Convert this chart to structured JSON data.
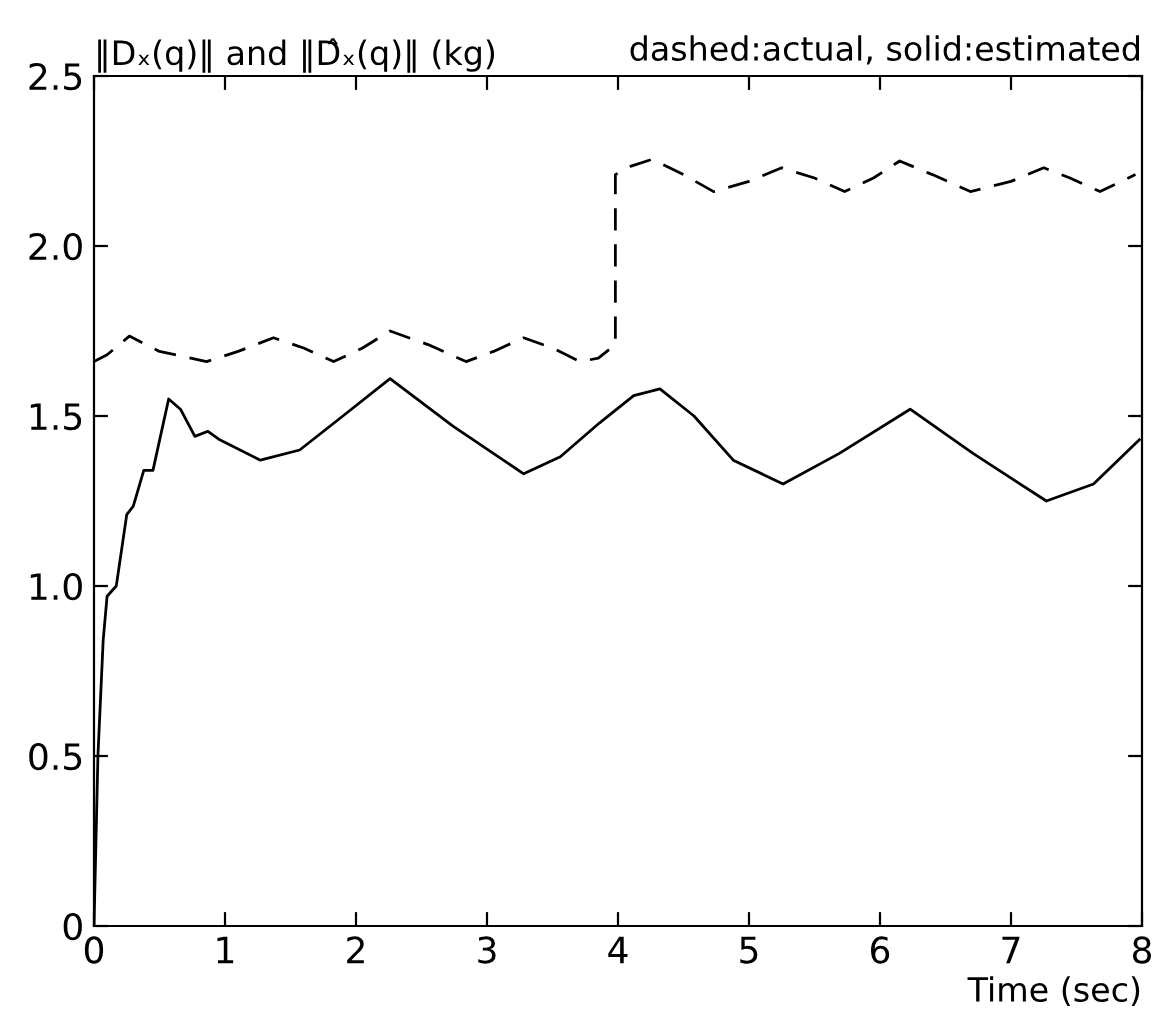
{
  "chart_data": {
    "type": "line",
    "title": "‖Dₓ(q)‖ and ‖D̂ₓ(q)‖ (kg)",
    "annotations": [
      "dashed:actual, solid:estimated"
    ],
    "xlabel": "Time (sec)",
    "xlim": [
      0,
      8
    ],
    "ylim": [
      0,
      2.5
    ],
    "xticks": [
      0,
      1,
      2,
      3,
      4,
      5,
      6,
      7,
      8
    ],
    "yticks": [
      0,
      0.5,
      {
        "value": 1,
        "label": "1.0"
      },
      1.5,
      {
        "value": 2,
        "label": "2.0"
      },
      2.5
    ],
    "grid": false,
    "legend": false,
    "series": [
      {
        "color": "#000000",
        "line_style": "dashed",
        "x": [
          0,
          0.1,
          0.27,
          0.5,
          0.86,
          1.1,
          1.37,
          1.6,
          1.83,
          2.05,
          2.26,
          2.55,
          2.84,
          3.05,
          3.28,
          3.5,
          3.71,
          3.85,
          3.98,
          3.98,
          4.1,
          4.26,
          4.5,
          4.73,
          5.0,
          5.25,
          5.5,
          5.73,
          5.95,
          6.15,
          6.4,
          6.69,
          7.0,
          7.25,
          7.45,
          7.68,
          7.95
        ],
        "values": [
          1.66,
          1.68,
          1.735,
          1.69,
          1.66,
          1.69,
          1.73,
          1.7,
          1.66,
          1.7,
          1.75,
          1.71,
          1.66,
          1.69,
          1.73,
          1.7,
          1.66,
          1.67,
          1.71,
          2.21,
          2.235,
          2.255,
          2.21,
          2.16,
          2.19,
          2.23,
          2.2,
          2.16,
          2.2,
          2.25,
          2.21,
          2.16,
          2.19,
          2.23,
          2.2,
          2.16,
          2.21
        ]
      },
      {
        "color": "#000000",
        "line_style": "solid",
        "x": [
          0,
          0.03,
          0.07,
          0.1,
          0.17,
          0.25,
          0.3,
          0.38,
          0.45,
          0.57,
          0.66,
          0.77,
          0.87,
          0.96,
          1.27,
          1.57,
          1.9,
          2.26,
          2.74,
          3.28,
          3.56,
          3.86,
          4.12,
          4.32,
          4.58,
          4.88,
          5.26,
          5.69,
          6.23,
          6.71,
          7.27,
          7.63,
          7.98
        ],
        "values": [
          0,
          0.5,
          0.84,
          0.97,
          1.0,
          1.21,
          1.235,
          1.34,
          1.34,
          1.55,
          1.52,
          1.44,
          1.455,
          1.43,
          1.37,
          1.4,
          1.5,
          1.61,
          1.47,
          1.33,
          1.38,
          1.48,
          1.56,
          1.58,
          1.5,
          1.37,
          1.3,
          1.39,
          1.52,
          1.39,
          1.25,
          1.3,
          1.43
        ]
      }
    ]
  }
}
